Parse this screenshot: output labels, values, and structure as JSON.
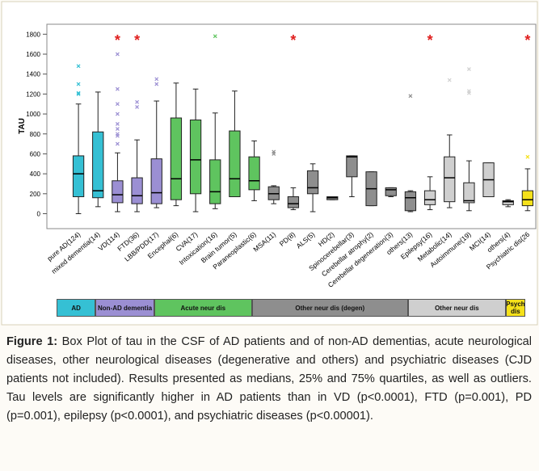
{
  "chart_data": {
    "type": "box",
    "y_label": "TAU",
    "ylim": [
      -150,
      1900
    ],
    "yticks": [
      0,
      200,
      400,
      600,
      800,
      1000,
      1200,
      1400,
      1600,
      1800
    ],
    "series": [
      {
        "name": "AD",
        "color": "#35c0d4",
        "boxes": [
          {
            "category": "pure AD(124)",
            "min": 0,
            "q1": 170,
            "median": 400,
            "q3": 580,
            "max": 1100,
            "outliers": [
              1200,
              1210,
              1300,
              1480
            ]
          },
          {
            "category": "mixed dementia(14)",
            "min": 70,
            "q1": 160,
            "median": 230,
            "q3": 820,
            "max": 1220,
            "outliers": []
          }
        ]
      },
      {
        "name": "Non-AD dementia",
        "color": "#9b8fd3",
        "boxes": [
          {
            "category": "VD(114)",
            "min": 20,
            "q1": 110,
            "median": 190,
            "q3": 330,
            "max": 610,
            "outliers": [
              700,
              780,
              800,
              850,
              900,
              1000,
              1100,
              1250,
              1600
            ],
            "annotation": "*"
          },
          {
            "category": "FTD(36)",
            "min": 20,
            "q1": 100,
            "median": 180,
            "q3": 360,
            "max": 740,
            "outliers": [
              1070,
              1120
            ],
            "annotation": "*"
          },
          {
            "category": "LBB/PDD(17)",
            "min": 60,
            "q1": 100,
            "median": 210,
            "q3": 550,
            "max": 1130,
            "outliers": [
              1300,
              1350
            ]
          }
        ]
      },
      {
        "name": "Acute neur dis",
        "color": "#5fc45f",
        "boxes": [
          {
            "category": "Encephal(6)",
            "min": 80,
            "q1": 140,
            "median": 350,
            "q3": 960,
            "max": 1310,
            "outliers": []
          },
          {
            "category": "CVA(17)",
            "min": 20,
            "q1": 200,
            "median": 540,
            "q3": 940,
            "max": 1250,
            "outliers": []
          },
          {
            "category": "Intoxication(16)",
            "min": 50,
            "q1": 100,
            "median": 220,
            "q3": 540,
            "max": 1010,
            "outliers": [
              1780
            ]
          },
          {
            "category": "Brain tumor(5)",
            "min": 170,
            "q1": 170,
            "median": 350,
            "q3": 830,
            "max": 1230,
            "outliers": []
          },
          {
            "category": "Paraneoplastic(6)",
            "min": 130,
            "q1": 240,
            "median": 330,
            "q3": 570,
            "max": 730,
            "outliers": []
          }
        ]
      },
      {
        "name": "Other neur dis (degen)",
        "color": "#8e8e8e",
        "boxes": [
          {
            "category": "MSA(11)",
            "min": 100,
            "q1": 140,
            "median": 200,
            "q3": 270,
            "max": 280,
            "outliers": [
              600,
              620
            ]
          },
          {
            "category": "PD(8)",
            "min": 40,
            "q1": 60,
            "median": 100,
            "q3": 170,
            "max": 260,
            "outliers": [],
            "annotation": "*"
          },
          {
            "category": "ALS(5)",
            "min": 20,
            "q1": 200,
            "median": 260,
            "q3": 430,
            "max": 500,
            "outliers": []
          },
          {
            "category": "HD(2)",
            "min": 140,
            "q1": 140,
            "median": 160,
            "q3": 170,
            "max": 170,
            "outliers": []
          },
          {
            "category": "Spinocerebellar(3)",
            "min": 170,
            "q1": 370,
            "median": 570,
            "q3": 580,
            "max": 580,
            "outliers": []
          },
          {
            "category": "Cerebellar atrophy(2)",
            "min": 80,
            "q1": 80,
            "median": 250,
            "q3": 420,
            "max": 420,
            "outliers": []
          },
          {
            "category": "Cerebellar degeneration(3)",
            "min": 170,
            "q1": 180,
            "median": 240,
            "q3": 260,
            "max": 260,
            "outliers": []
          },
          {
            "category": "others(13)",
            "min": 20,
            "q1": 30,
            "median": 160,
            "q3": 220,
            "max": 230,
            "outliers": [
              1180
            ]
          }
        ]
      },
      {
        "name": "Other neur dis",
        "color": "#cfcfcf",
        "boxes": [
          {
            "category": "Epilepsy(16)",
            "min": 40,
            "q1": 90,
            "median": 140,
            "q3": 230,
            "max": 370,
            "outliers": [],
            "annotation": "*"
          },
          {
            "category": "Metabolic(14)",
            "min": 60,
            "q1": 120,
            "median": 360,
            "q3": 570,
            "max": 790,
            "outliers": [
              1340
            ]
          },
          {
            "category": "Autoimmune(19)",
            "min": 30,
            "q1": 110,
            "median": 130,
            "q3": 310,
            "max": 530,
            "outliers": [
              1210,
              1230,
              1450
            ]
          },
          {
            "category": "MCI(14)",
            "min": 170,
            "q1": 170,
            "median": 340,
            "q3": 510,
            "max": 510,
            "outliers": []
          },
          {
            "category": "others(4)",
            "min": 70,
            "q1": 90,
            "median": 120,
            "q3": 130,
            "max": 140,
            "outliers": []
          }
        ]
      },
      {
        "name": "Psych dis",
        "color": "#f5e11a",
        "boxes": [
          {
            "category": "Psychiatric dis(26",
            "min": 30,
            "q1": 80,
            "median": 140,
            "q3": 230,
            "max": 450,
            "outliers": [
              570
            ],
            "annotation": "*"
          }
        ]
      }
    ]
  },
  "caption": {
    "label": "Figure 1:",
    "text": "Box Plot of tau in the CSF of AD patients and of non-AD dementias, acute neurological diseases, other neurological diseases (degenerative and others) and psychiatric diseases (CJD patients not included).  Results presented as medians, 25% and 75% quartiles, as well as outliers. Tau levels are significantly higher in AD patients than in VD (p<0.0001), FTD (p=0.001), PD (p=0.001), epilepsy (p<0.0001), and psychiatric diseases (p<0.00001)."
  }
}
